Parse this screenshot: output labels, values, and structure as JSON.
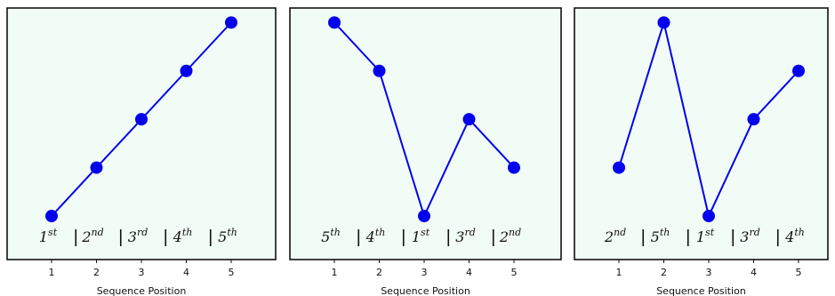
{
  "chart_data": [
    {
      "type": "line",
      "x": [
        1,
        2,
        3,
        4,
        5
      ],
      "y": [
        1,
        2,
        3,
        4,
        5
      ],
      "xlabel": "Sequence Position",
      "xticks": [
        "1",
        "2",
        "3",
        "4",
        "5"
      ],
      "xlim": [
        0,
        6.5
      ],
      "ylim": [
        0.1,
        5.3
      ],
      "grid": false,
      "rank_labels": [
        {
          "base": "1",
          "sup": "st"
        },
        {
          "base": "2",
          "sup": "nd"
        },
        {
          "base": "3",
          "sup": "rd"
        },
        {
          "base": "4",
          "sup": "th"
        },
        {
          "base": "5",
          "sup": "th"
        }
      ]
    },
    {
      "type": "line",
      "x": [
        1,
        2,
        3,
        4,
        5
      ],
      "y": [
        5,
        4,
        1,
        3,
        2
      ],
      "xlabel": "Sequence Position",
      "xticks": [
        "1",
        "2",
        "3",
        "4",
        "5"
      ],
      "xlim": [
        0,
        6.5
      ],
      "ylim": [
        0.1,
        5.3
      ],
      "grid": false,
      "rank_labels": [
        {
          "base": "5",
          "sup": "th"
        },
        {
          "base": "4",
          "sup": "th"
        },
        {
          "base": "1",
          "sup": "st"
        },
        {
          "base": "3",
          "sup": "rd"
        },
        {
          "base": "2",
          "sup": "nd"
        }
      ]
    },
    {
      "type": "line",
      "x": [
        1,
        2,
        3,
        4,
        5
      ],
      "y": [
        2,
        5,
        1,
        3,
        4
      ],
      "xlabel": "Sequence Position",
      "xticks": [
        "1",
        "2",
        "3",
        "4",
        "5"
      ],
      "xlim": [
        0,
        6.5
      ],
      "ylim": [
        0.1,
        5.3
      ],
      "grid": false,
      "rank_labels": [
        {
          "base": "2",
          "sup": "nd"
        },
        {
          "base": "5",
          "sup": "th"
        },
        {
          "base": "1",
          "sup": "st"
        },
        {
          "base": "3",
          "sup": "rd"
        },
        {
          "base": "4",
          "sup": "th"
        }
      ]
    }
  ],
  "colors": {
    "line": "#0000ee",
    "marker": "#0000ee",
    "panel_bg": "#f2fcf6",
    "frame": "#111111"
  }
}
